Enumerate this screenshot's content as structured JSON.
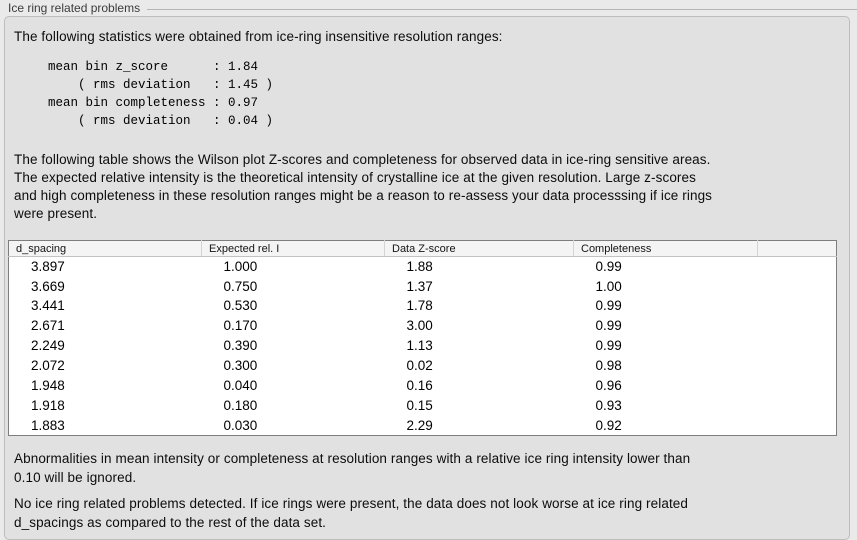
{
  "section": {
    "title": "Ice ring related problems"
  },
  "stats": {
    "intro": "The following statistics were obtained from ice-ring insensitive resolution ranges:",
    "lines": [
      "mean bin z_score      : 1.84",
      "    ( rms deviation   : 1.45 )",
      "mean bin completeness : 0.97",
      "    ( rms deviation   : 0.04 )"
    ]
  },
  "table_intro": {
    "lines": [
      "The following table shows the Wilson plot Z-scores and completeness for observed data in ice-ring sensitive areas.",
      "The expected relative intensity is the theoretical intensity of crystalline ice at the given resolution. Large z-scores",
      "and high completeness in these resolution ranges might be a reason to re-assess your data processsing if ice rings",
      "were present."
    ]
  },
  "table": {
    "columns": [
      "d_spacing",
      "Expected rel. I",
      "Data Z-score",
      "Completeness"
    ],
    "rows": [
      [
        "3.897",
        "1.000",
        "1.88",
        "0.99"
      ],
      [
        "3.669",
        "0.750",
        "1.37",
        "1.00"
      ],
      [
        "3.441",
        "0.530",
        "1.78",
        "0.99"
      ],
      [
        "2.671",
        "0.170",
        "3.00",
        "0.99"
      ],
      [
        "2.249",
        "0.390",
        "1.13",
        "0.99"
      ],
      [
        "2.072",
        "0.300",
        "0.02",
        "0.98"
      ],
      [
        "1.948",
        "0.040",
        "0.16",
        "0.96"
      ],
      [
        "1.918",
        "0.180",
        "0.15",
        "0.93"
      ],
      [
        "1.883",
        "0.030",
        "2.29",
        "0.92"
      ]
    ]
  },
  "notes": {
    "ignore": {
      "lines": [
        "Abnormalities in mean intensity or completeness at resolution ranges with a relative ice ring intensity lower than",
        "0.10 will be ignored."
      ]
    },
    "conclusion": {
      "lines": [
        "No ice ring related problems detected. If ice rings were present, the data does not look worse at ice ring related",
        "d_spacings as compared to the rest of the data set."
      ]
    }
  },
  "colors": {
    "page_bg": "#eaeaea",
    "panel_bg": "#e1e1e1",
    "panel_border": "#bdbdbd",
    "table_border": "#7e7e7e",
    "table_header_bg": "#f4f4f4"
  }
}
